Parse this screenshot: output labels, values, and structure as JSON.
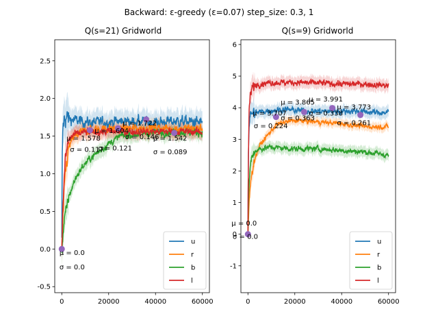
{
  "figure": {
    "suptitle": "Backward: ε-greedy (ε=0.07) step_size: 0.3, 1",
    "colors": {
      "u": "#1f77b4",
      "r": "#ff7f0e",
      "b": "#2ca02c",
      "l": "#d62728",
      "marker": "#9467bd"
    }
  },
  "chart_data": [
    {
      "type": "line",
      "title": "Q(s=21) Gridworld",
      "xlabel": "",
      "ylabel": "",
      "xlim": [
        -3000,
        63000
      ],
      "ylim": [
        -0.58,
        2.78
      ],
      "xticks": [
        0,
        20000,
        40000,
        60000
      ],
      "yticks": [
        -0.5,
        0.0,
        0.5,
        1.0,
        1.5,
        2.0,
        2.5
      ],
      "legend": {
        "placement": "bottom-right",
        "entries": [
          "u",
          "r",
          "b",
          "l"
        ]
      },
      "series": [
        {
          "name": "u",
          "color": "#1f77b4",
          "x": [
            0,
            200,
            500,
            1000,
            2000,
            4000,
            8000,
            12000,
            20000,
            30000,
            40000,
            50000,
            60000
          ],
          "y": [
            0.1,
            1.2,
            1.6,
            1.72,
            1.75,
            1.72,
            1.7,
            1.68,
            1.69,
            1.7,
            1.68,
            1.7,
            1.68
          ],
          "noise": 0.09
        },
        {
          "name": "r",
          "color": "#ff7f0e",
          "x": [
            0,
            500,
            1500,
            3000,
            5000,
            8000,
            12000,
            20000,
            30000,
            40000,
            50000,
            60000
          ],
          "y": [
            0.0,
            0.4,
            1.0,
            1.35,
            1.48,
            1.55,
            1.58,
            1.6,
            1.6,
            1.61,
            1.6,
            1.6
          ],
          "noise": 0.07
        },
        {
          "name": "b",
          "color": "#2ca02c",
          "x": [
            0,
            1000,
            3000,
            6000,
            9000,
            12000,
            16000,
            20000,
            25000,
            30000,
            40000,
            50000,
            60000
          ],
          "y": [
            0.0,
            0.35,
            0.7,
            0.95,
            1.1,
            1.2,
            1.3,
            1.4,
            1.5,
            1.52,
            1.55,
            1.55,
            1.55
          ],
          "noise": 0.06
        },
        {
          "name": "l",
          "color": "#d62728",
          "x": [
            0,
            500,
            1500,
            3000,
            5000,
            10000,
            20000,
            30000,
            40000,
            50000,
            60000
          ],
          "y": [
            0.0,
            0.6,
            1.2,
            1.45,
            1.52,
            1.55,
            1.56,
            1.56,
            1.56,
            1.56,
            1.56
          ],
          "noise": 0.06
        }
      ],
      "markers": [
        {
          "x": 0,
          "y": 0.0
        },
        {
          "x": 12000,
          "y": 1.578
        },
        {
          "x": 24000,
          "y": 1.604
        },
        {
          "x": 36000,
          "y": 1.722
        },
        {
          "x": 48000,
          "y": 1.542
        }
      ],
      "annotations": [
        {
          "x": -1000,
          "y": -0.08,
          "text": "μ = 0.0"
        },
        {
          "x": -1000,
          "y": -0.27,
          "text": "σ = 0.0"
        },
        {
          "x": 2000,
          "y": 1.44,
          "text": "μ = 1.578"
        },
        {
          "x": 3500,
          "y": 1.29,
          "text": "σ = 0.117"
        },
        {
          "x": 14000,
          "y": 1.54,
          "text": "μ = 1.604"
        },
        {
          "x": 15500,
          "y": 1.31,
          "text": "σ = 0.121"
        },
        {
          "x": 26000,
          "y": 1.64,
          "text": "μ = 1.722"
        },
        {
          "x": 27000,
          "y": 1.46,
          "text": "σ = 0.146"
        },
        {
          "x": 39000,
          "y": 1.44,
          "text": "μ = 1.542"
        },
        {
          "x": 39000,
          "y": 1.26,
          "text": "σ = 0.089"
        }
      ]
    },
    {
      "type": "line",
      "title": "Q(s=9) Gridworld",
      "xlabel": "",
      "ylabel": "",
      "xlim": [
        -3000,
        63000
      ],
      "ylim": [
        -1.85,
        6.15
      ],
      "xticks": [
        0,
        20000,
        40000,
        60000
      ],
      "yticks": [
        -1,
        0,
        1,
        2,
        3,
        4,
        5,
        6
      ],
      "legend": {
        "placement": "bottom-right",
        "entries": [
          "u",
          "r",
          "b",
          "l"
        ]
      },
      "series": [
        {
          "name": "u",
          "color": "#1f77b4",
          "x": [
            0,
            200,
            500,
            1000,
            2000,
            4000,
            8000,
            15000,
            25000,
            35000,
            45000,
            55000,
            60000
          ],
          "y": [
            0.0,
            2.5,
            3.5,
            3.75,
            3.85,
            3.85,
            3.9,
            3.95,
            3.9,
            3.88,
            3.9,
            3.85,
            3.85
          ],
          "noise": 0.12
        },
        {
          "name": "r",
          "color": "#ff7f0e",
          "x": [
            0,
            500,
            1500,
            3000,
            5000,
            8000,
            12000,
            16000,
            20000,
            30000,
            40000,
            50000,
            60000
          ],
          "y": [
            0.0,
            1.0,
            1.9,
            2.4,
            2.8,
            3.1,
            3.45,
            3.55,
            3.6,
            3.55,
            3.5,
            3.4,
            3.4
          ],
          "noise": 0.09
        },
        {
          "name": "b",
          "color": "#2ca02c",
          "x": [
            0,
            300,
            800,
            1500,
            2500,
            5000,
            10000,
            20000,
            30000,
            40000,
            50000,
            60000
          ],
          "y": [
            0.0,
            1.2,
            2.0,
            2.4,
            2.6,
            2.7,
            2.75,
            2.7,
            2.7,
            2.65,
            2.6,
            2.5
          ],
          "noise": 0.11
        },
        {
          "name": "l",
          "color": "#d62728",
          "x": [
            0,
            200,
            500,
            1000,
            2000,
            4000,
            10000,
            20000,
            30000,
            40000,
            50000,
            60000
          ],
          "y": [
            0.0,
            2.5,
            3.8,
            4.4,
            4.65,
            4.75,
            4.8,
            4.8,
            4.78,
            4.75,
            4.75,
            4.7
          ],
          "noise": 0.12
        }
      ],
      "markers": [
        {
          "x": 0,
          "y": 0.0
        },
        {
          "x": 12000,
          "y": 3.707
        },
        {
          "x": 24000,
          "y": 3.865
        },
        {
          "x": 36000,
          "y": 3.991
        },
        {
          "x": 48000,
          "y": 3.773
        }
      ],
      "annotations": [
        {
          "x": -7000,
          "y": 0.28,
          "text": "μ = 0.0"
        },
        {
          "x": -6500,
          "y": -0.15,
          "text": "σ = 0.0"
        },
        {
          "x": 2000,
          "y": 3.75,
          "text": "μ = 3.707"
        },
        {
          "x": 2500,
          "y": 3.35,
          "text": "σ = 0.224"
        },
        {
          "x": 14000,
          "y": 4.1,
          "text": "μ = 3.865"
        },
        {
          "x": 14000,
          "y": 3.6,
          "text": "σ = 0.363"
        },
        {
          "x": 26000,
          "y": 4.2,
          "text": "μ = 3.991"
        },
        {
          "x": 26000,
          "y": 3.75,
          "text": "σ = 0.338"
        },
        {
          "x": 38000,
          "y": 3.95,
          "text": "μ = 3.773"
        },
        {
          "x": 38000,
          "y": 3.45,
          "text": "σ = 0.261"
        }
      ]
    }
  ]
}
